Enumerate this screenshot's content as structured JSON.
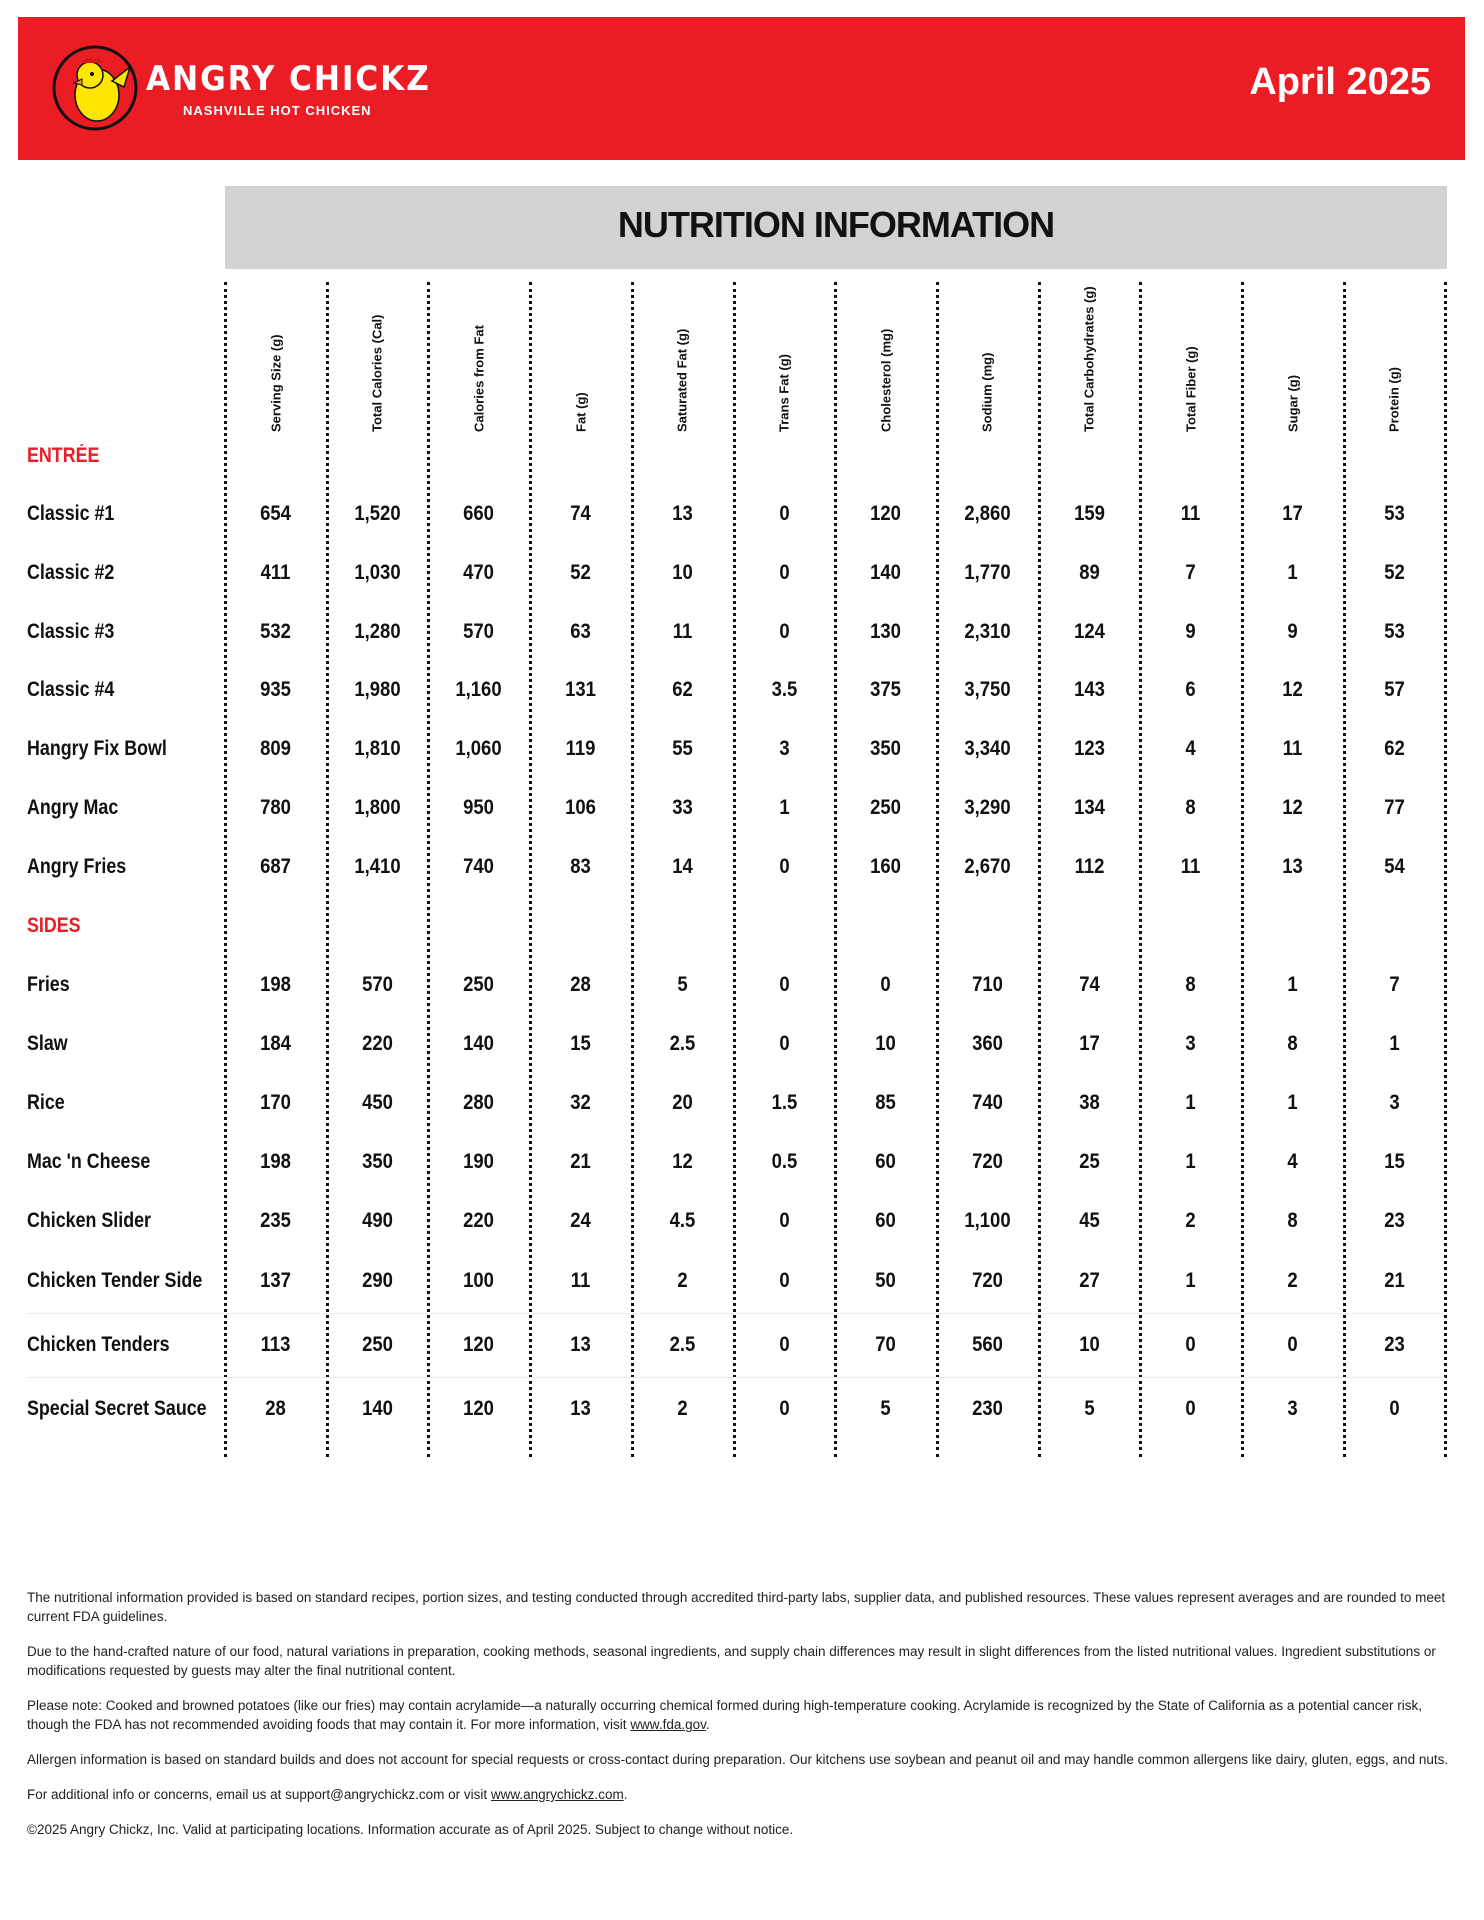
{
  "header": {
    "brand": "ANGRY CHICKZ",
    "tagline": "NASHVILLE HOT CHICKEN",
    "date": "April 2025",
    "brand_color": "#ec1c24"
  },
  "title": "NUTRITION INFORMATION",
  "columns": [
    "Serving Size (g)",
    "Total Calories (Cal)",
    "Calories from Fat",
    "Fat (g)",
    "Saturated Fat (g)",
    "Trans Fat (g)",
    "Cholesterol (mg)",
    "Sodium (mg)",
    "Total Carbohydrates (g)",
    "Total Fiber (g)",
    "Sugar (g)",
    "Protein (g)"
  ],
  "sections": [
    {
      "label": "ENTRÉE",
      "rows": [
        {
          "name": "Classic #1",
          "values": [
            "654",
            "1,520",
            "660",
            "74",
            "13",
            "0",
            "120",
            "2,860",
            "159",
            "11",
            "17",
            "53"
          ]
        },
        {
          "name": "Classic #2",
          "values": [
            "411",
            "1,030",
            "470",
            "52",
            "10",
            "0",
            "140",
            "1,770",
            "89",
            "7",
            "1",
            "52"
          ]
        },
        {
          "name": "Classic #3",
          "values": [
            "532",
            "1,280",
            "570",
            "63",
            "11",
            "0",
            "130",
            "2,310",
            "124",
            "9",
            "9",
            "53"
          ]
        },
        {
          "name": "Classic #4",
          "values": [
            "935",
            "1,980",
            "1,160",
            "131",
            "62",
            "3.5",
            "375",
            "3,750",
            "143",
            "6",
            "12",
            "57"
          ]
        },
        {
          "name": "Hangry Fix Bowl",
          "values": [
            "809",
            "1,810",
            "1,060",
            "119",
            "55",
            "3",
            "350",
            "3,340",
            "123",
            "4",
            "11",
            "62"
          ]
        },
        {
          "name": "Angry Mac",
          "values": [
            "780",
            "1,800",
            "950",
            "106",
            "33",
            "1",
            "250",
            "3,290",
            "134",
            "8",
            "12",
            "77"
          ]
        },
        {
          "name": "Angry Fries",
          "values": [
            "687",
            "1,410",
            "740",
            "83",
            "14",
            "0",
            "160",
            "2,670",
            "112",
            "11",
            "13",
            "54"
          ]
        }
      ]
    },
    {
      "label": "SIDES",
      "rows": [
        {
          "name": "Fries",
          "values": [
            "198",
            "570",
            "250",
            "28",
            "5",
            "0",
            "0",
            "710",
            "74",
            "8",
            "1",
            "7"
          ]
        },
        {
          "name": "Slaw",
          "values": [
            "184",
            "220",
            "140",
            "15",
            "2.5",
            "0",
            "10",
            "360",
            "17",
            "3",
            "8",
            "1"
          ]
        },
        {
          "name": "Rice",
          "values": [
            "170",
            "450",
            "280",
            "32",
            "20",
            "1.5",
            "85",
            "740",
            "38",
            "1",
            "1",
            "3"
          ]
        },
        {
          "name": "Mac 'n Cheese",
          "values": [
            "198",
            "350",
            "190",
            "21",
            "12",
            "0.5",
            "60",
            "720",
            "25",
            "1",
            "4",
            "15"
          ]
        },
        {
          "name": "Chicken Slider",
          "values": [
            "235",
            "490",
            "220",
            "24",
            "4.5",
            "0",
            "60",
            "1,100",
            "45",
            "2",
            "8",
            "23"
          ]
        },
        {
          "name": "Chicken Tender Side",
          "values": [
            "137",
            "290",
            "100",
            "11",
            "2",
            "0",
            "50",
            "720",
            "27",
            "1",
            "2",
            "21"
          ]
        },
        {
          "name": "Chicken Tenders",
          "values": [
            "113",
            "250",
            "120",
            "13",
            "2.5",
            "0",
            "70",
            "560",
            "10",
            "0",
            "0",
            "23"
          ]
        },
        {
          "name": "Special Secret Sauce",
          "values": [
            "28",
            "140",
            "120",
            "13",
            "2",
            "0",
            "5",
            "230",
            "5",
            "0",
            "3",
            "0"
          ]
        }
      ]
    }
  ],
  "footer": {
    "p1": "The nutritional information provided is based on standard recipes, portion sizes, and testing conducted through accredited third-party labs, supplier data, and published resources. These values represent averages and are rounded to meet current FDA guidelines.",
    "p2": "Due to the hand-crafted nature of our food, natural variations in preparation, cooking methods, seasonal ingredients, and supply chain differences may result in slight differences from the listed nutritional values. Ingredient substitutions or modifications requested by guests may alter the final nutritional content.",
    "p3": "Please note: Cooked and browned potatoes (like our fries) may contain acrylamide—a naturally occurring chemical formed during high-temperature cooking. Acrylamide is recognized by the State of California as a potential cancer risk, though the FDA has not recommended avoiding foods that may contain it. For more information, visit ",
    "p3_link": "www.fda.gov",
    "p3_end": ".",
    "p4": "Allergen information is based on standard builds and does not account for special requests or cross-contact during preparation. Our kitchens use soybean and peanut oil and may handle common allergens like dairy, gluten, eggs, and nuts.",
    "p5": "For additional info or concerns, email us at support@angrychickz.com or visit ",
    "p5_link": "www.angrychickz.com",
    "p5_end": ".",
    "p6": "©2025 Angry Chickz, Inc. Valid at participating locations. Information accurate as of April 2025. Subject to change without notice."
  }
}
